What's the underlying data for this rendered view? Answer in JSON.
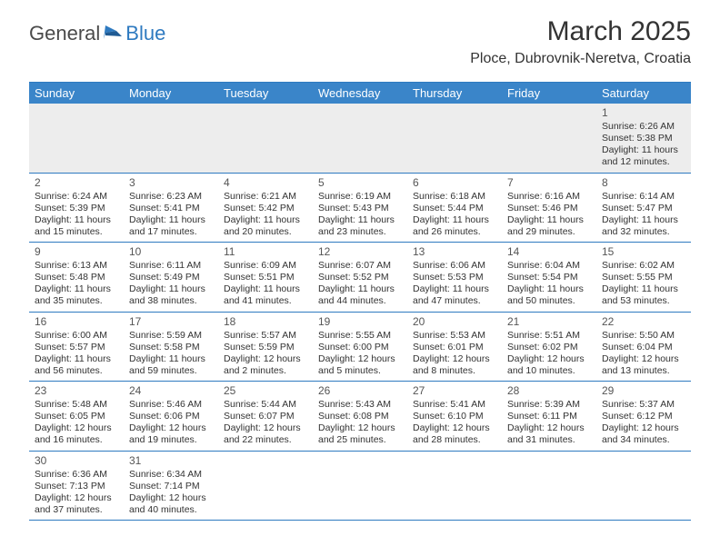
{
  "logo": {
    "text_dark": "General",
    "text_blue": "Blue"
  },
  "title": {
    "month": "March 2025",
    "location": "Ploce, Dubrovnik-Neretva, Croatia"
  },
  "colors": {
    "header_bg": "#3a85c9",
    "header_text": "#ffffff",
    "border": "#2e7ac0",
    "empty_week_bg": "#ededed",
    "text": "#333333",
    "logo_dark": "#4a4a4a",
    "logo_blue": "#2e7ac0"
  },
  "day_names": [
    "Sunday",
    "Monday",
    "Tuesday",
    "Wednesday",
    "Thursday",
    "Friday",
    "Saturday"
  ],
  "weeks": [
    [
      null,
      null,
      null,
      null,
      null,
      null,
      {
        "n": "1",
        "sr": "Sunrise: 6:26 AM",
        "ss": "Sunset: 5:38 PM",
        "d1": "Daylight: 11 hours",
        "d2": "and 12 minutes."
      }
    ],
    [
      {
        "n": "2",
        "sr": "Sunrise: 6:24 AM",
        "ss": "Sunset: 5:39 PM",
        "d1": "Daylight: 11 hours",
        "d2": "and 15 minutes."
      },
      {
        "n": "3",
        "sr": "Sunrise: 6:23 AM",
        "ss": "Sunset: 5:41 PM",
        "d1": "Daylight: 11 hours",
        "d2": "and 17 minutes."
      },
      {
        "n": "4",
        "sr": "Sunrise: 6:21 AM",
        "ss": "Sunset: 5:42 PM",
        "d1": "Daylight: 11 hours",
        "d2": "and 20 minutes."
      },
      {
        "n": "5",
        "sr": "Sunrise: 6:19 AM",
        "ss": "Sunset: 5:43 PM",
        "d1": "Daylight: 11 hours",
        "d2": "and 23 minutes."
      },
      {
        "n": "6",
        "sr": "Sunrise: 6:18 AM",
        "ss": "Sunset: 5:44 PM",
        "d1": "Daylight: 11 hours",
        "d2": "and 26 minutes."
      },
      {
        "n": "7",
        "sr": "Sunrise: 6:16 AM",
        "ss": "Sunset: 5:46 PM",
        "d1": "Daylight: 11 hours",
        "d2": "and 29 minutes."
      },
      {
        "n": "8",
        "sr": "Sunrise: 6:14 AM",
        "ss": "Sunset: 5:47 PM",
        "d1": "Daylight: 11 hours",
        "d2": "and 32 minutes."
      }
    ],
    [
      {
        "n": "9",
        "sr": "Sunrise: 6:13 AM",
        "ss": "Sunset: 5:48 PM",
        "d1": "Daylight: 11 hours",
        "d2": "and 35 minutes."
      },
      {
        "n": "10",
        "sr": "Sunrise: 6:11 AM",
        "ss": "Sunset: 5:49 PM",
        "d1": "Daylight: 11 hours",
        "d2": "and 38 minutes."
      },
      {
        "n": "11",
        "sr": "Sunrise: 6:09 AM",
        "ss": "Sunset: 5:51 PM",
        "d1": "Daylight: 11 hours",
        "d2": "and 41 minutes."
      },
      {
        "n": "12",
        "sr": "Sunrise: 6:07 AM",
        "ss": "Sunset: 5:52 PM",
        "d1": "Daylight: 11 hours",
        "d2": "and 44 minutes."
      },
      {
        "n": "13",
        "sr": "Sunrise: 6:06 AM",
        "ss": "Sunset: 5:53 PM",
        "d1": "Daylight: 11 hours",
        "d2": "and 47 minutes."
      },
      {
        "n": "14",
        "sr": "Sunrise: 6:04 AM",
        "ss": "Sunset: 5:54 PM",
        "d1": "Daylight: 11 hours",
        "d2": "and 50 minutes."
      },
      {
        "n": "15",
        "sr": "Sunrise: 6:02 AM",
        "ss": "Sunset: 5:55 PM",
        "d1": "Daylight: 11 hours",
        "d2": "and 53 minutes."
      }
    ],
    [
      {
        "n": "16",
        "sr": "Sunrise: 6:00 AM",
        "ss": "Sunset: 5:57 PM",
        "d1": "Daylight: 11 hours",
        "d2": "and 56 minutes."
      },
      {
        "n": "17",
        "sr": "Sunrise: 5:59 AM",
        "ss": "Sunset: 5:58 PM",
        "d1": "Daylight: 11 hours",
        "d2": "and 59 minutes."
      },
      {
        "n": "18",
        "sr": "Sunrise: 5:57 AM",
        "ss": "Sunset: 5:59 PM",
        "d1": "Daylight: 12 hours",
        "d2": "and 2 minutes."
      },
      {
        "n": "19",
        "sr": "Sunrise: 5:55 AM",
        "ss": "Sunset: 6:00 PM",
        "d1": "Daylight: 12 hours",
        "d2": "and 5 minutes."
      },
      {
        "n": "20",
        "sr": "Sunrise: 5:53 AM",
        "ss": "Sunset: 6:01 PM",
        "d1": "Daylight: 12 hours",
        "d2": "and 8 minutes."
      },
      {
        "n": "21",
        "sr": "Sunrise: 5:51 AM",
        "ss": "Sunset: 6:02 PM",
        "d1": "Daylight: 12 hours",
        "d2": "and 10 minutes."
      },
      {
        "n": "22",
        "sr": "Sunrise: 5:50 AM",
        "ss": "Sunset: 6:04 PM",
        "d1": "Daylight: 12 hours",
        "d2": "and 13 minutes."
      }
    ],
    [
      {
        "n": "23",
        "sr": "Sunrise: 5:48 AM",
        "ss": "Sunset: 6:05 PM",
        "d1": "Daylight: 12 hours",
        "d2": "and 16 minutes."
      },
      {
        "n": "24",
        "sr": "Sunrise: 5:46 AM",
        "ss": "Sunset: 6:06 PM",
        "d1": "Daylight: 12 hours",
        "d2": "and 19 minutes."
      },
      {
        "n": "25",
        "sr": "Sunrise: 5:44 AM",
        "ss": "Sunset: 6:07 PM",
        "d1": "Daylight: 12 hours",
        "d2": "and 22 minutes."
      },
      {
        "n": "26",
        "sr": "Sunrise: 5:43 AM",
        "ss": "Sunset: 6:08 PM",
        "d1": "Daylight: 12 hours",
        "d2": "and 25 minutes."
      },
      {
        "n": "27",
        "sr": "Sunrise: 5:41 AM",
        "ss": "Sunset: 6:10 PM",
        "d1": "Daylight: 12 hours",
        "d2": "and 28 minutes."
      },
      {
        "n": "28",
        "sr": "Sunrise: 5:39 AM",
        "ss": "Sunset: 6:11 PM",
        "d1": "Daylight: 12 hours",
        "d2": "and 31 minutes."
      },
      {
        "n": "29",
        "sr": "Sunrise: 5:37 AM",
        "ss": "Sunset: 6:12 PM",
        "d1": "Daylight: 12 hours",
        "d2": "and 34 minutes."
      }
    ],
    [
      {
        "n": "30",
        "sr": "Sunrise: 6:36 AM",
        "ss": "Sunset: 7:13 PM",
        "d1": "Daylight: 12 hours",
        "d2": "and 37 minutes."
      },
      {
        "n": "31",
        "sr": "Sunrise: 6:34 AM",
        "ss": "Sunset: 7:14 PM",
        "d1": "Daylight: 12 hours",
        "d2": "and 40 minutes."
      },
      null,
      null,
      null,
      null,
      null
    ]
  ]
}
